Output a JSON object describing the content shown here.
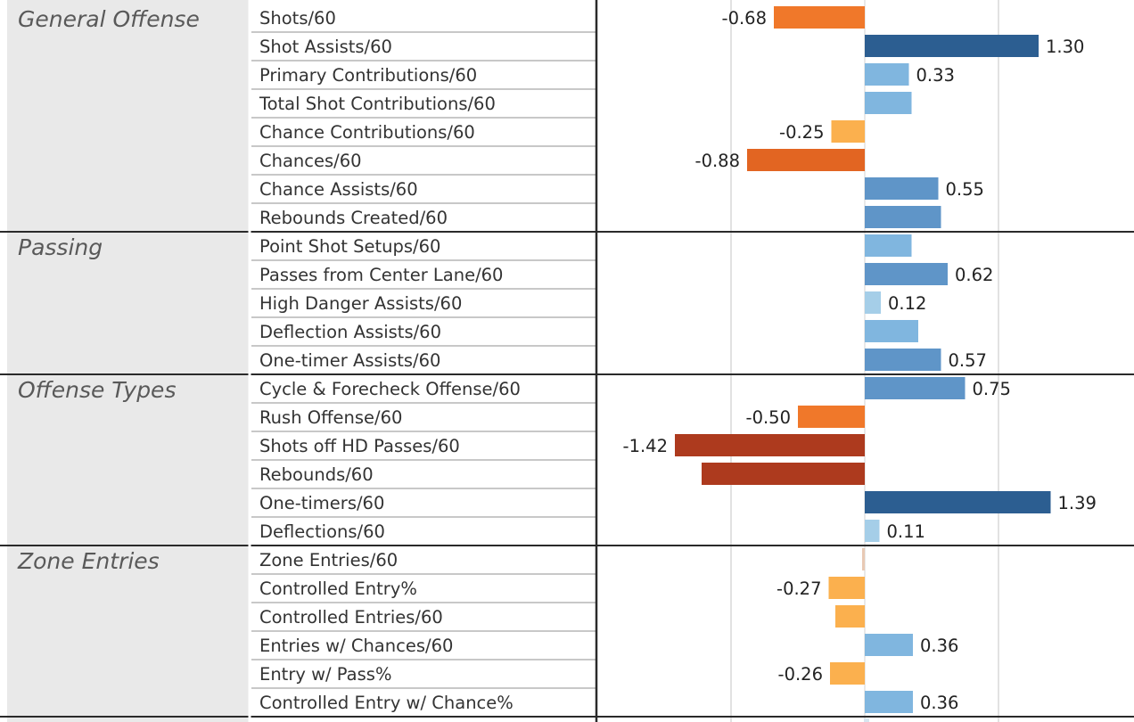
{
  "chart_data": {
    "type": "bar",
    "orientation": "horizontal",
    "grid": true,
    "xlim": [
      -2,
      2
    ],
    "gridlines_at": [
      -1,
      1
    ],
    "zero_line": true,
    "colors": {
      "positive_strong": "#2c5e91",
      "positive_mid": "#5f95c8",
      "positive_light": "#80b6df",
      "positive_pale": "#a5cee8",
      "negative_pale": "#fbb04e",
      "negative_mid": "#f0782a",
      "negative_strong": "#e26522",
      "negative_dark": "#ad3a1e"
    },
    "groups": [
      {
        "name": "General Offense",
        "rows": [
          {
            "metric": "Shots/60",
            "value": -0.68,
            "label": "-0.68"
          },
          {
            "metric": "Shot Assists/60",
            "value": 1.3,
            "label": "1.30"
          },
          {
            "metric": "Primary Contributions/60",
            "value": 0.33,
            "label": "0.33"
          },
          {
            "metric": "Total Shot Contributions/60",
            "value": 0.35,
            "label": ""
          },
          {
            "metric": "Chance Contributions/60",
            "value": -0.25,
            "label": "-0.25"
          },
          {
            "metric": "Chances/60",
            "value": -0.88,
            "label": "-0.88"
          },
          {
            "metric": "Chance Assists/60",
            "value": 0.55,
            "label": "0.55"
          },
          {
            "metric": "Rebounds Created/60",
            "value": 0.57,
            "label": ""
          }
        ]
      },
      {
        "name": "Passing",
        "rows": [
          {
            "metric": "Point Shot Setups/60",
            "value": 0.35,
            "label": ""
          },
          {
            "metric": "Passes from Center Lane/60",
            "value": 0.62,
            "label": "0.62"
          },
          {
            "metric": "High Danger Assists/60",
            "value": 0.12,
            "label": "0.12"
          },
          {
            "metric": "Deflection Assists/60",
            "value": 0.4,
            "label": ""
          },
          {
            "metric": "One-timer Assists/60",
            "value": 0.57,
            "label": "0.57"
          }
        ]
      },
      {
        "name": "Offense Types",
        "rows": [
          {
            "metric": "Cycle & Forecheck Offense/60",
            "value": 0.75,
            "label": "0.75"
          },
          {
            "metric": "Rush Offense/60",
            "value": -0.5,
            "label": "-0.50"
          },
          {
            "metric": "Shots off HD Passes/60",
            "value": -1.42,
            "label": "-1.42"
          },
          {
            "metric": "Rebounds/60",
            "value": -1.22,
            "label": ""
          },
          {
            "metric": "One-timers/60",
            "value": 1.39,
            "label": "1.39"
          },
          {
            "metric": "Deflections/60",
            "value": 0.11,
            "label": "0.11"
          }
        ]
      },
      {
        "name": "Zone Entries",
        "rows": [
          {
            "metric": "Zone Entries/60",
            "value": -0.02,
            "label": ""
          },
          {
            "metric": "Controlled Entry%",
            "value": -0.27,
            "label": "-0.27"
          },
          {
            "metric": "Controlled Entries/60",
            "value": -0.22,
            "label": ""
          },
          {
            "metric": "Entries w/ Chances/60",
            "value": 0.36,
            "label": "0.36"
          },
          {
            "metric": "Entry w/ Pass%",
            "value": -0.26,
            "label": "-0.26"
          },
          {
            "metric": "Controlled Entry w/ Chance%",
            "value": 0.36,
            "label": "0.36"
          }
        ]
      }
    ]
  }
}
